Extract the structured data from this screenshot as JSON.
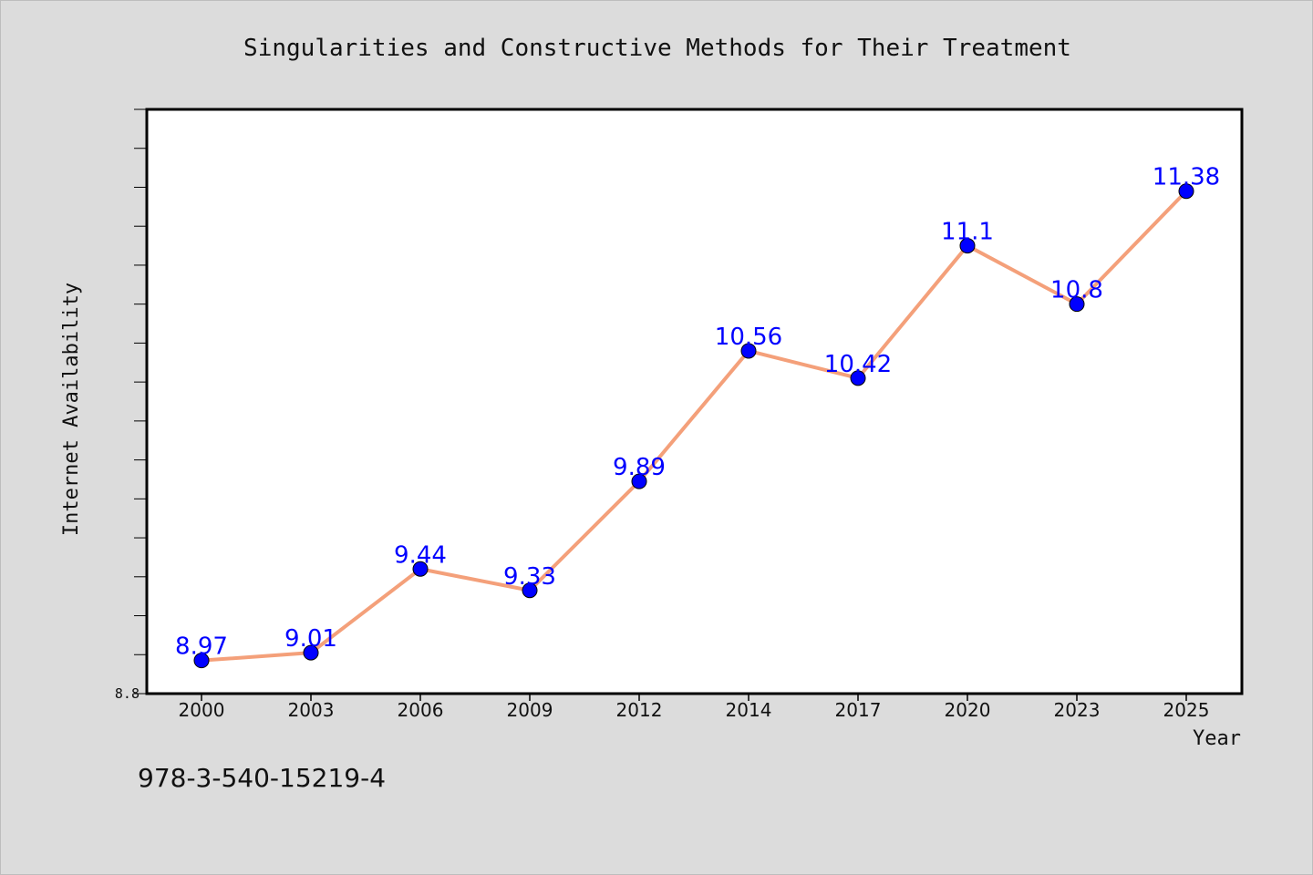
{
  "chart_data": {
    "type": "line",
    "title": "Singularities and Constructive Methods for Their Treatment",
    "xlabel": "Year",
    "ylabel": "Internet Availability",
    "categories": [
      "2000",
      "2003",
      "2006",
      "2009",
      "2012",
      "2014",
      "2017",
      "2020",
      "2023",
      "2025"
    ],
    "series": [
      {
        "values": [
          8.97,
          9.01,
          9.44,
          9.33,
          9.89,
          10.56,
          10.42,
          11.1,
          10.8,
          11.38
        ],
        "data_labels": [
          "8.97",
          "9.01",
          "9.44",
          "9.33",
          "9.89",
          "10.56",
          "10.42",
          "11.1",
          "10.8",
          "11.38"
        ]
      }
    ],
    "ylim": [
      8.8,
      11.8
    ],
    "yticks_labeled": [
      "8.8"
    ],
    "grid": false,
    "line_color": "#f4a07a",
    "marker_color": "#0000ff",
    "label_color": "#0000ff"
  },
  "footer": {
    "isbn": "978-3-540-15219-4"
  }
}
